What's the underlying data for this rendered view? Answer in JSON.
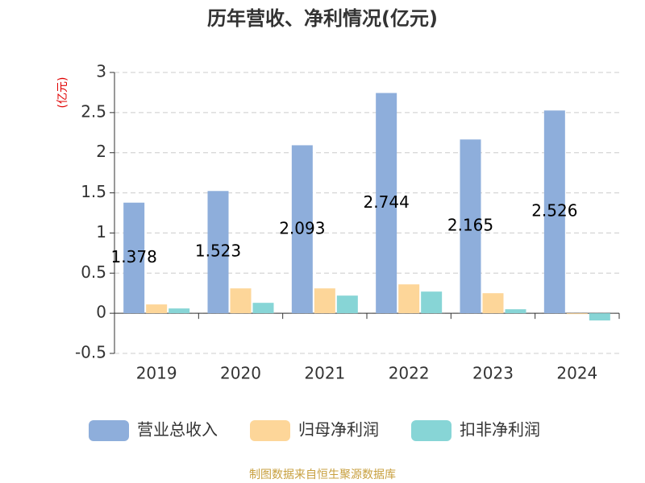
{
  "chart_data": {
    "type": "bar",
    "title": "历年营收、净利情况(亿元)",
    "y_unit": "(亿元)",
    "source": "制图数据来自恒生聚源数据库",
    "categories": [
      "2019",
      "2020",
      "2021",
      "2022",
      "2023",
      "2024"
    ],
    "series": [
      {
        "name": "营业总收入",
        "color": "#8eaedb",
        "values": [
          1.378,
          1.523,
          2.093,
          2.744,
          2.165,
          2.526
        ],
        "show_labels": true
      },
      {
        "name": "归母净利润",
        "color": "#fdd699",
        "values": [
          0.11,
          0.31,
          0.31,
          0.36,
          0.25,
          -0.01
        ]
      },
      {
        "name": "扣非净利润",
        "color": "#87d5d6",
        "values": [
          0.06,
          0.13,
          0.22,
          0.27,
          0.05,
          -0.09
        ]
      }
    ],
    "ylim": [
      -0.5,
      3
    ],
    "yticks": [
      -0.5,
      0,
      0.5,
      1,
      1.5,
      2,
      2.5,
      3
    ],
    "grid": true
  }
}
